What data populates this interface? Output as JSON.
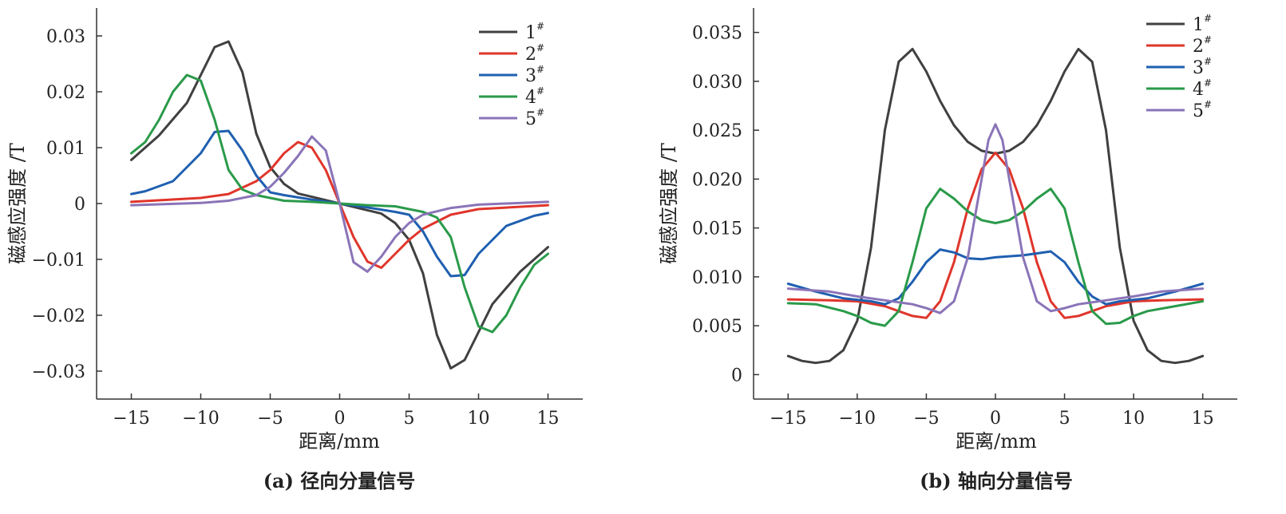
{
  "chart_data": [
    {
      "type": "line",
      "panel": "a",
      "caption": "(a) 径向分量信号",
      "xlabel": "距离/mm",
      "ylabel": "磁感应强度 /T",
      "xlim": [
        -17.5,
        17.5
      ],
      "ylim": [
        -0.035,
        0.035
      ],
      "xticks": [
        -15,
        -10,
        -5,
        0,
        5,
        10,
        15
      ],
      "xtick_labels": [
        "−15",
        "−10",
        "−5",
        "0",
        "5",
        "10",
        "15"
      ],
      "yticks": [
        0.03,
        0.02,
        0.01,
        0,
        -0.01,
        -0.02,
        -0.03
      ],
      "ytick_labels": [
        "0.03",
        "0.02",
        "0.01",
        "0",
        "−0.01",
        "−0.02",
        "−0.03"
      ],
      "legend_position": "top-right",
      "series": [
        {
          "name": "1",
          "sup": "#",
          "color": "#404040",
          "x": [
            -15,
            -13,
            -11,
            -10,
            -9,
            -8,
            -7,
            -6,
            -5,
            -4,
            -3,
            -2,
            0,
            2,
            3,
            4,
            5,
            6,
            7,
            8,
            9,
            10,
            11,
            13,
            15
          ],
          "y": [
            0.0078,
            0.0122,
            0.018,
            0.023,
            0.028,
            0.029,
            0.0235,
            0.0125,
            0.0065,
            0.0035,
            0.0018,
            0.0012,
            0,
            -0.0012,
            -0.0018,
            -0.0035,
            -0.0065,
            -0.0125,
            -0.0235,
            -0.0295,
            -0.028,
            -0.023,
            -0.018,
            -0.0122,
            -0.0078
          ]
        },
        {
          "name": "2",
          "sup": "#",
          "color": "#e0352b",
          "x": [
            -15,
            -10,
            -8,
            -6,
            -5,
            -4,
            -3,
            -2,
            -1,
            0,
            1,
            2,
            3,
            4,
            5,
            6,
            8,
            10,
            15
          ],
          "y": [
            0.0003,
            0.001,
            0.0017,
            0.004,
            0.006,
            0.009,
            0.011,
            0.01,
            0.006,
            0,
            -0.006,
            -0.0104,
            -0.0115,
            -0.009,
            -0.0065,
            -0.0045,
            -0.002,
            -0.001,
            -0.0003
          ]
        },
        {
          "name": "3",
          "sup": "#",
          "color": "#1f5fb0",
          "x": [
            -15,
            -14,
            -12,
            -11,
            -10,
            -9,
            -8,
            -7,
            -6,
            -5,
            -4,
            -2,
            0,
            2,
            4,
            5,
            6,
            7,
            8,
            9,
            10,
            11,
            12,
            14,
            15
          ],
          "y": [
            0.0017,
            0.0022,
            0.004,
            0.0065,
            0.009,
            0.0128,
            0.013,
            0.0095,
            0.005,
            0.002,
            0.0015,
            0.0007,
            0,
            -0.0007,
            -0.0015,
            -0.002,
            -0.005,
            -0.0095,
            -0.013,
            -0.0128,
            -0.009,
            -0.0065,
            -0.004,
            -0.0022,
            -0.0017
          ]
        },
        {
          "name": "4",
          "sup": "#",
          "color": "#2a9a4a",
          "x": [
            -15,
            -14,
            -13,
            -12,
            -11,
            -10,
            -9,
            -8,
            -7,
            -6,
            -4,
            -2,
            0,
            2,
            4,
            6,
            7,
            8,
            9,
            10,
            11,
            12,
            13,
            14,
            15
          ],
          "y": [
            0.009,
            0.011,
            0.015,
            0.02,
            0.023,
            0.022,
            0.015,
            0.006,
            0.0025,
            0.0015,
            0.0005,
            0.0003,
            0,
            -0.0003,
            -0.0005,
            -0.0015,
            -0.0025,
            -0.006,
            -0.015,
            -0.022,
            -0.023,
            -0.02,
            -0.015,
            -0.011,
            -0.009
          ]
        },
        {
          "name": "5",
          "sup": "#",
          "color": "#8a74b8",
          "x": [
            -15,
            -10,
            -8,
            -6,
            -5,
            -4,
            -3,
            -2,
            -1,
            0,
            1,
            2,
            3,
            4,
            5,
            6,
            8,
            10,
            15
          ],
          "y": [
            -0.0003,
            0.0001,
            0.0005,
            0.0015,
            0.003,
            0.0055,
            0.0085,
            0.012,
            0.0095,
            0,
            -0.0105,
            -0.0122,
            -0.0095,
            -0.006,
            -0.0035,
            -0.002,
            -0.0008,
            -0.0002,
            0.0003
          ]
        }
      ]
    },
    {
      "type": "line",
      "panel": "b",
      "caption": "(b) 轴向分量信号",
      "xlabel": "距离/mm",
      "ylabel": "磁感应强度 /T",
      "xlim": [
        -17.5,
        17.5
      ],
      "ylim": [
        -0.0025,
        0.0375
      ],
      "xticks": [
        -15,
        -10,
        -5,
        0,
        5,
        10,
        15
      ],
      "xtick_labels": [
        "−15",
        "−10",
        "−5",
        "0",
        "5",
        "10",
        "15"
      ],
      "yticks": [
        0.035,
        0.03,
        0.025,
        0.02,
        0.015,
        0.01,
        0.005,
        0
      ],
      "ytick_labels": [
        "0.035",
        "0.030",
        "0.025",
        "0.020",
        "0.015",
        "0.010",
        "0.005",
        "0"
      ],
      "legend_position": "top-right",
      "series": [
        {
          "name": "1",
          "sup": "#",
          "color": "#404040",
          "x": [
            -15,
            -14,
            -13,
            -12,
            -11,
            -10,
            -9,
            -8,
            -7,
            -6,
            -5,
            -4,
            -3,
            -2,
            -1,
            0,
            1,
            2,
            3,
            4,
            5,
            6,
            7,
            8,
            9,
            10,
            11,
            12,
            13,
            14,
            15
          ],
          "y": [
            0.0019,
            0.0014,
            0.0012,
            0.0014,
            0.0025,
            0.0055,
            0.013,
            0.025,
            0.032,
            0.0333,
            0.031,
            0.028,
            0.0255,
            0.0238,
            0.0229,
            0.0226,
            0.0229,
            0.0238,
            0.0255,
            0.028,
            0.031,
            0.0333,
            0.032,
            0.025,
            0.013,
            0.0055,
            0.0025,
            0.0014,
            0.0012,
            0.0014,
            0.0019
          ]
        },
        {
          "name": "2",
          "sup": "#",
          "color": "#e0352b",
          "x": [
            -15,
            -12,
            -10,
            -8,
            -7,
            -6,
            -5,
            -4,
            -3,
            -2,
            -1,
            0,
            1,
            2,
            3,
            4,
            5,
            6,
            7,
            8,
            10,
            12,
            15
          ],
          "y": [
            0.0077,
            0.0076,
            0.0075,
            0.007,
            0.0065,
            0.006,
            0.0058,
            0.0075,
            0.0115,
            0.017,
            0.021,
            0.0227,
            0.021,
            0.017,
            0.0115,
            0.0075,
            0.0058,
            0.006,
            0.0065,
            0.007,
            0.0075,
            0.0076,
            0.0077
          ]
        },
        {
          "name": "3",
          "sup": "#",
          "color": "#1f5fb0",
          "x": [
            -15,
            -13,
            -11,
            -9,
            -8,
            -7,
            -6,
            -5,
            -4,
            -3,
            -2,
            -1,
            0,
            1,
            2,
            3,
            4,
            5,
            6,
            7,
            8,
            9,
            11,
            13,
            15
          ],
          "y": [
            0.0093,
            0.0085,
            0.0078,
            0.0075,
            0.0072,
            0.0078,
            0.0095,
            0.0115,
            0.0128,
            0.0125,
            0.0119,
            0.0118,
            0.012,
            0.0121,
            0.0122,
            0.0124,
            0.0126,
            0.0115,
            0.0095,
            0.008,
            0.0072,
            0.0075,
            0.0078,
            0.0085,
            0.0093
          ]
        },
        {
          "name": "4",
          "sup": "#",
          "color": "#2a9a4a",
          "x": [
            -15,
            -13,
            -11,
            -10,
            -9,
            -8,
            -7,
            -6,
            -5,
            -4,
            -3,
            -2,
            -1,
            0,
            1,
            2,
            3,
            4,
            5,
            6,
            7,
            8,
            9,
            10,
            11,
            13,
            15
          ],
          "y": [
            0.0073,
            0.0072,
            0.0065,
            0.006,
            0.0053,
            0.005,
            0.0065,
            0.0115,
            0.017,
            0.019,
            0.018,
            0.0167,
            0.0158,
            0.0155,
            0.0158,
            0.0167,
            0.018,
            0.019,
            0.017,
            0.0115,
            0.0065,
            0.0052,
            0.0053,
            0.006,
            0.0065,
            0.007,
            0.0075
          ]
        },
        {
          "name": "5",
          "sup": "#",
          "color": "#8a74b8",
          "x": [
            -15,
            -12,
            -10,
            -8,
            -6,
            -5,
            -4,
            -3,
            -2,
            -1,
            -0.5,
            0,
            0.5,
            1,
            2,
            3,
            4,
            5,
            6,
            8,
            10,
            12,
            15
          ],
          "y": [
            0.0088,
            0.0085,
            0.008,
            0.0076,
            0.0072,
            0.0068,
            0.0063,
            0.0075,
            0.012,
            0.02,
            0.024,
            0.0256,
            0.024,
            0.02,
            0.012,
            0.0075,
            0.0065,
            0.0068,
            0.0072,
            0.0076,
            0.008,
            0.0085,
            0.0088
          ]
        }
      ]
    }
  ]
}
